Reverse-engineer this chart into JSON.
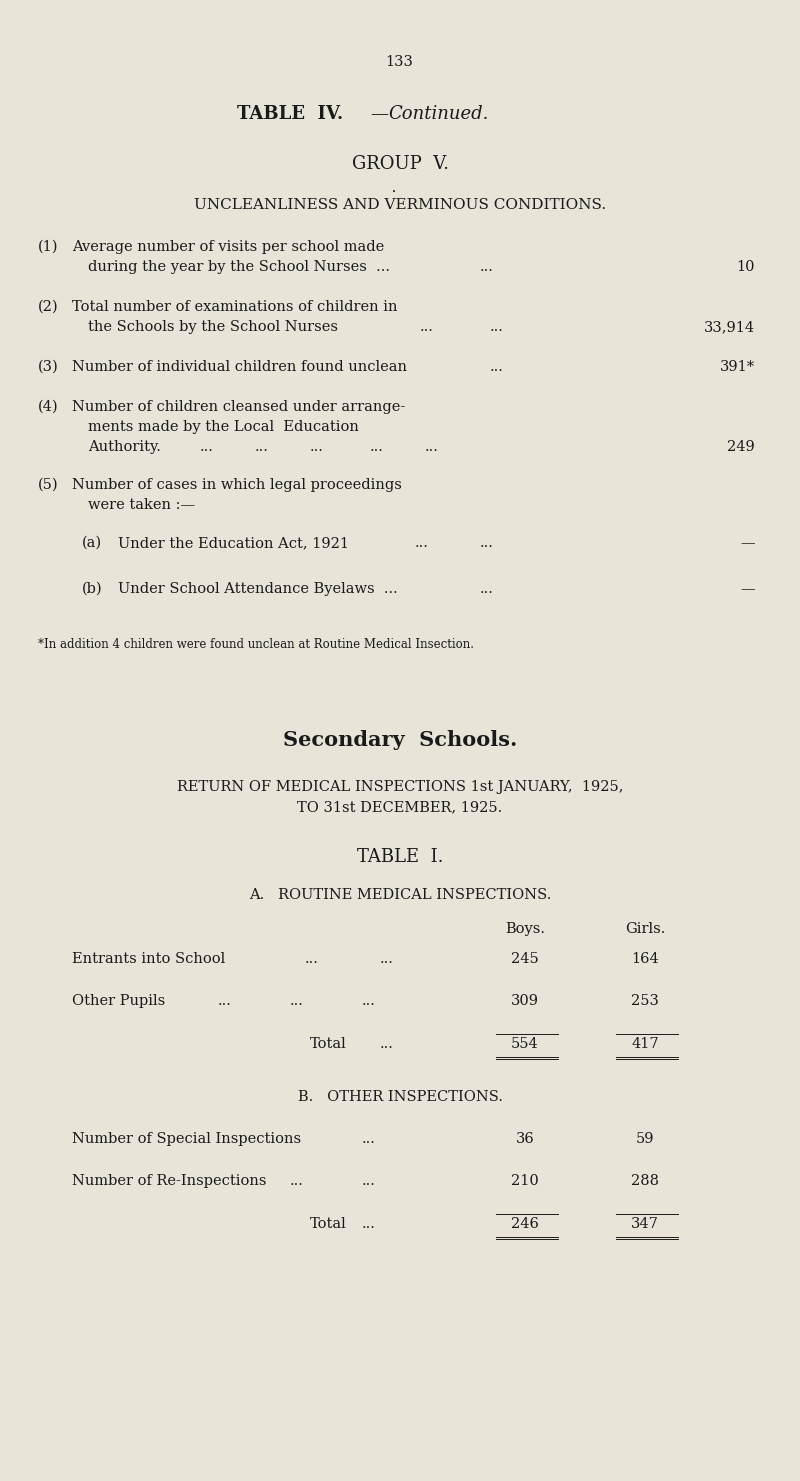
{
  "bg_color": "#e8e4d8",
  "text_color": "#1a1a1a",
  "page_number": "133",
  "footnote": "*In addition 4 children were found unclean at Routine Medical Insection.",
  "secondary_title": "Secondary  Schools.",
  "return_line1": "RETURN OF MEDICAL INSPECTIONS 1st JANUARY,  1925,",
  "return_line2": "TO 31st DECEMBER, 1925.",
  "table_i_title": "TABLE  I.",
  "section_a_title": "A.   ROUTINE MEDICAL INSPECTIONS.",
  "col_boys": "Boys.",
  "col_girls": "Girls.",
  "section_b_title": "B.   OTHER INSPECTIONS."
}
